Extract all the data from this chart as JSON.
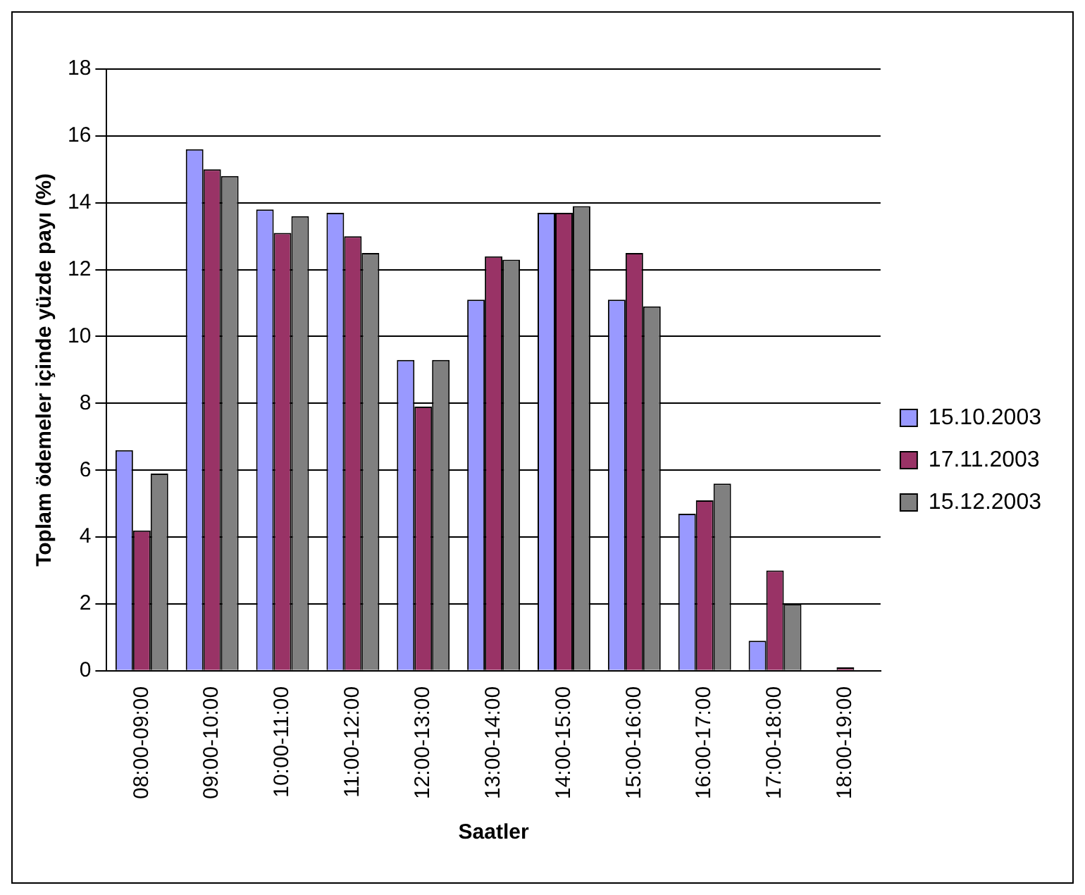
{
  "chart_data": {
    "type": "bar",
    "xlabel": "Saatler",
    "ylabel": "Toplam ödemeler içinde yüzde payı (%)",
    "categories": [
      "08:00-09:00",
      "09:00-10:00",
      "10:00-11:00",
      "11:00-12:00",
      "12:00-13:00",
      "13:00-14:00",
      "14:00-15:00",
      "15:00-16:00",
      "16:00-17:00",
      "17:00-18:00",
      "18:00-19:00"
    ],
    "series": [
      {
        "name": "15.10.2003",
        "color": "#9999ff",
        "values": [
          6.6,
          15.6,
          13.8,
          13.7,
          9.3,
          11.1,
          13.7,
          11.1,
          4.7,
          0.9,
          0
        ]
      },
      {
        "name": "17.11.2003",
        "color": "#993366",
        "values": [
          4.2,
          15.0,
          13.1,
          13.0,
          7.9,
          12.4,
          13.7,
          12.5,
          5.1,
          3.0,
          0.1
        ]
      },
      {
        "name": "15.12.2003",
        "color": "#808080",
        "values": [
          5.9,
          14.8,
          13.6,
          12.5,
          9.3,
          12.3,
          13.9,
          10.9,
          5.6,
          2.0,
          0
        ]
      }
    ],
    "ylim": [
      0,
      18
    ],
    "yticks": [
      0,
      2,
      4,
      6,
      8,
      10,
      12,
      14,
      16,
      18
    ],
    "grid": "y",
    "legend": "right"
  }
}
